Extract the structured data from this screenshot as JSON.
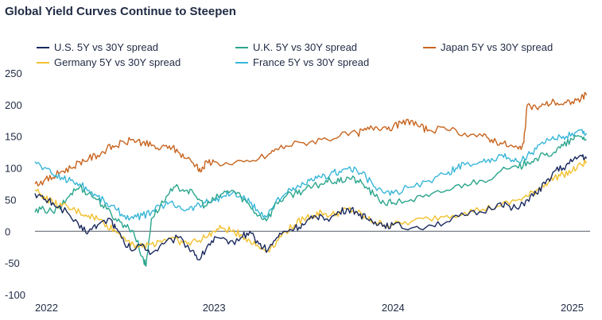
{
  "title": "Global Yield Curves Continue to Steepen",
  "chart_data": {
    "type": "line",
    "title": "Global Yield Curves Continue to Steepen",
    "xlabel": "",
    "ylabel": "",
    "x_range": [
      2022.0,
      2025.1
    ],
    "ylim": [
      -100,
      250
    ],
    "y_ticks": [
      250,
      200,
      150,
      100,
      50,
      0,
      -50,
      -100
    ],
    "y_tick_labels": [
      "250",
      "200",
      "150",
      "100",
      "50",
      "0",
      "-50",
      "-100"
    ],
    "x_ticks": [
      2022,
      2023,
      2024,
      2025
    ],
    "x_tick_labels": [
      "2022",
      "2023",
      "2024",
      "2025"
    ],
    "zero_line": true,
    "grid": false,
    "legend_placement": "top",
    "series": [
      {
        "name": "U.S. 5Y vs 30Y spread",
        "color": "#1b2a5e",
        "points": [
          [
            2022.0,
            60
          ],
          [
            2022.05,
            50
          ],
          [
            2022.1,
            45
          ],
          [
            2022.18,
            30
          ],
          [
            2022.25,
            5
          ],
          [
            2022.3,
            0
          ],
          [
            2022.35,
            10
          ],
          [
            2022.42,
            20
          ],
          [
            2022.45,
            5
          ],
          [
            2022.5,
            -20
          ],
          [
            2022.55,
            -30
          ],
          [
            2022.6,
            -20
          ],
          [
            2022.65,
            -35
          ],
          [
            2022.72,
            -20
          ],
          [
            2022.8,
            -10
          ],
          [
            2022.88,
            -30
          ],
          [
            2022.92,
            -45
          ],
          [
            2022.97,
            -20
          ],
          [
            2023.02,
            -10
          ],
          [
            2023.08,
            -20
          ],
          [
            2023.15,
            -10
          ],
          [
            2023.2,
            0
          ],
          [
            2023.25,
            -20
          ],
          [
            2023.3,
            -30
          ],
          [
            2023.35,
            -10
          ],
          [
            2023.4,
            0
          ],
          [
            2023.45,
            5
          ],
          [
            2023.5,
            10
          ],
          [
            2023.55,
            20
          ],
          [
            2023.6,
            25
          ],
          [
            2023.65,
            20
          ],
          [
            2023.7,
            30
          ],
          [
            2023.75,
            35
          ],
          [
            2023.8,
            30
          ],
          [
            2023.85,
            20
          ],
          [
            2023.9,
            15
          ],
          [
            2023.95,
            10
          ],
          [
            2024.0,
            10
          ],
          [
            2024.1,
            5
          ],
          [
            2024.2,
            10
          ],
          [
            2024.3,
            15
          ],
          [
            2024.4,
            25
          ],
          [
            2024.5,
            30
          ],
          [
            2024.6,
            45
          ],
          [
            2024.65,
            40
          ],
          [
            2024.7,
            35
          ],
          [
            2024.75,
            50
          ],
          [
            2024.8,
            60
          ],
          [
            2024.85,
            75
          ],
          [
            2024.9,
            95
          ],
          [
            2024.95,
            100
          ],
          [
            2025.0,
            110
          ],
          [
            2025.05,
            120
          ],
          [
            2025.08,
            115
          ]
        ]
      },
      {
        "name": "U.K. 5Y vs 30Y spread",
        "color": "#2aa58c",
        "points": [
          [
            2022.0,
            30
          ],
          [
            2022.05,
            35
          ],
          [
            2022.1,
            30
          ],
          [
            2022.15,
            40
          ],
          [
            2022.2,
            60
          ],
          [
            2022.25,
            70
          ],
          [
            2022.3,
            60
          ],
          [
            2022.35,
            50
          ],
          [
            2022.4,
            35
          ],
          [
            2022.45,
            20
          ],
          [
            2022.5,
            10
          ],
          [
            2022.55,
            0
          ],
          [
            2022.6,
            -40
          ],
          [
            2022.62,
            -55
          ],
          [
            2022.65,
            20
          ],
          [
            2022.7,
            40
          ],
          [
            2022.75,
            60
          ],
          [
            2022.8,
            70
          ],
          [
            2022.85,
            65
          ],
          [
            2022.9,
            55
          ],
          [
            2022.95,
            40
          ],
          [
            2023.0,
            50
          ],
          [
            2023.05,
            60
          ],
          [
            2023.1,
            65
          ],
          [
            2023.15,
            55
          ],
          [
            2023.2,
            40
          ],
          [
            2023.25,
            25
          ],
          [
            2023.3,
            20
          ],
          [
            2023.35,
            45
          ],
          [
            2023.4,
            55
          ],
          [
            2023.45,
            60
          ],
          [
            2023.5,
            65
          ],
          [
            2023.55,
            70
          ],
          [
            2023.6,
            75
          ],
          [
            2023.65,
            80
          ],
          [
            2023.7,
            78
          ],
          [
            2023.75,
            85
          ],
          [
            2023.8,
            80
          ],
          [
            2023.85,
            70
          ],
          [
            2023.9,
            55
          ],
          [
            2023.95,
            45
          ],
          [
            2024.0,
            45
          ],
          [
            2024.1,
            50
          ],
          [
            2024.2,
            55
          ],
          [
            2024.3,
            65
          ],
          [
            2024.4,
            75
          ],
          [
            2024.5,
            80
          ],
          [
            2024.6,
            95
          ],
          [
            2024.7,
            100
          ],
          [
            2024.75,
            110
          ],
          [
            2024.8,
            115
          ],
          [
            2024.85,
            120
          ],
          [
            2024.9,
            125
          ],
          [
            2024.95,
            135
          ],
          [
            2025.0,
            145
          ],
          [
            2025.05,
            150
          ],
          [
            2025.08,
            145
          ]
        ]
      },
      {
        "name": "Japan 5Y vs 30Y spread",
        "color": "#c8641e",
        "points": [
          [
            2022.0,
            75
          ],
          [
            2022.05,
            80
          ],
          [
            2022.1,
            85
          ],
          [
            2022.15,
            95
          ],
          [
            2022.2,
            100
          ],
          [
            2022.25,
            110
          ],
          [
            2022.3,
            115
          ],
          [
            2022.35,
            120
          ],
          [
            2022.4,
            130
          ],
          [
            2022.45,
            135
          ],
          [
            2022.5,
            140
          ],
          [
            2022.55,
            145
          ],
          [
            2022.6,
            140
          ],
          [
            2022.65,
            135
          ],
          [
            2022.7,
            130
          ],
          [
            2022.75,
            135
          ],
          [
            2022.8,
            125
          ],
          [
            2022.85,
            115
          ],
          [
            2022.9,
            105
          ],
          [
            2022.93,
            95
          ],
          [
            2022.96,
            110
          ],
          [
            2023.0,
            110
          ],
          [
            2023.1,
            105
          ],
          [
            2023.2,
            110
          ],
          [
            2023.3,
            120
          ],
          [
            2023.35,
            130
          ],
          [
            2023.4,
            135
          ],
          [
            2023.5,
            140
          ],
          [
            2023.6,
            145
          ],
          [
            2023.7,
            150
          ],
          [
            2023.8,
            155
          ],
          [
            2023.85,
            160
          ],
          [
            2023.9,
            165
          ],
          [
            2023.95,
            165
          ],
          [
            2024.0,
            165
          ],
          [
            2024.05,
            170
          ],
          [
            2024.1,
            175
          ],
          [
            2024.15,
            165
          ],
          [
            2024.2,
            160
          ],
          [
            2024.3,
            160
          ],
          [
            2024.4,
            155
          ],
          [
            2024.5,
            150
          ],
          [
            2024.55,
            145
          ],
          [
            2024.6,
            140
          ],
          [
            2024.65,
            135
          ],
          [
            2024.7,
            130
          ],
          [
            2024.73,
            140
          ],
          [
            2024.75,
            200
          ],
          [
            2024.8,
            195
          ],
          [
            2024.85,
            200
          ],
          [
            2024.9,
            205
          ],
          [
            2024.95,
            200
          ],
          [
            2025.0,
            205
          ],
          [
            2025.05,
            210
          ],
          [
            2025.08,
            215
          ]
        ]
      },
      {
        "name": "Germany 5Y vs 30Y spread",
        "color": "#f2c12e",
        "points": [
          [
            2022.0,
            65
          ],
          [
            2022.05,
            55
          ],
          [
            2022.1,
            45
          ],
          [
            2022.15,
            40
          ],
          [
            2022.2,
            35
          ],
          [
            2022.25,
            30
          ],
          [
            2022.3,
            25
          ],
          [
            2022.35,
            20
          ],
          [
            2022.4,
            10
          ],
          [
            2022.45,
            0
          ],
          [
            2022.5,
            -10
          ],
          [
            2022.55,
            -20
          ],
          [
            2022.6,
            -25
          ],
          [
            2022.65,
            -20
          ],
          [
            2022.7,
            -15
          ],
          [
            2022.75,
            -10
          ],
          [
            2022.8,
            -15
          ],
          [
            2022.85,
            -20
          ],
          [
            2022.9,
            -15
          ],
          [
            2022.95,
            -10
          ],
          [
            2023.0,
            0
          ],
          [
            2023.05,
            5
          ],
          [
            2023.1,
            0
          ],
          [
            2023.15,
            -5
          ],
          [
            2023.2,
            -15
          ],
          [
            2023.25,
            -25
          ],
          [
            2023.3,
            -30
          ],
          [
            2023.35,
            -15
          ],
          [
            2023.4,
            0
          ],
          [
            2023.45,
            10
          ],
          [
            2023.5,
            20
          ],
          [
            2023.55,
            25
          ],
          [
            2023.6,
            30
          ],
          [
            2023.65,
            25
          ],
          [
            2023.7,
            30
          ],
          [
            2023.75,
            35
          ],
          [
            2023.8,
            30
          ],
          [
            2023.85,
            20
          ],
          [
            2023.9,
            15
          ],
          [
            2023.95,
            10
          ],
          [
            2024.0,
            10
          ],
          [
            2024.1,
            15
          ],
          [
            2024.2,
            20
          ],
          [
            2024.3,
            25
          ],
          [
            2024.4,
            30
          ],
          [
            2024.5,
            35
          ],
          [
            2024.6,
            40
          ],
          [
            2024.7,
            50
          ],
          [
            2024.75,
            55
          ],
          [
            2024.8,
            65
          ],
          [
            2024.85,
            75
          ],
          [
            2024.9,
            85
          ],
          [
            2024.95,
            90
          ],
          [
            2025.0,
            95
          ],
          [
            2025.05,
            105
          ],
          [
            2025.08,
            110
          ]
        ]
      },
      {
        "name": "France 5Y vs 30Y spread",
        "color": "#38b6d8",
        "points": [
          [
            2022.0,
            110
          ],
          [
            2022.05,
            100
          ],
          [
            2022.1,
            90
          ],
          [
            2022.15,
            85
          ],
          [
            2022.2,
            80
          ],
          [
            2022.25,
            75
          ],
          [
            2022.3,
            65
          ],
          [
            2022.35,
            55
          ],
          [
            2022.4,
            45
          ],
          [
            2022.45,
            35
          ],
          [
            2022.5,
            25
          ],
          [
            2022.55,
            20
          ],
          [
            2022.6,
            25
          ],
          [
            2022.65,
            30
          ],
          [
            2022.7,
            40
          ],
          [
            2022.75,
            45
          ],
          [
            2022.8,
            40
          ],
          [
            2022.85,
            35
          ],
          [
            2022.9,
            40
          ],
          [
            2022.95,
            45
          ],
          [
            2023.0,
            50
          ],
          [
            2023.05,
            55
          ],
          [
            2023.1,
            60
          ],
          [
            2023.15,
            55
          ],
          [
            2023.2,
            45
          ],
          [
            2023.25,
            30
          ],
          [
            2023.3,
            25
          ],
          [
            2023.35,
            50
          ],
          [
            2023.4,
            60
          ],
          [
            2023.45,
            65
          ],
          [
            2023.5,
            75
          ],
          [
            2023.55,
            80
          ],
          [
            2023.6,
            85
          ],
          [
            2023.65,
            90
          ],
          [
            2023.7,
            95
          ],
          [
            2023.75,
            100
          ],
          [
            2023.8,
            95
          ],
          [
            2023.85,
            85
          ],
          [
            2023.9,
            70
          ],
          [
            2023.95,
            60
          ],
          [
            2024.0,
            60
          ],
          [
            2024.1,
            70
          ],
          [
            2024.2,
            80
          ],
          [
            2024.3,
            90
          ],
          [
            2024.35,
            100
          ],
          [
            2024.4,
            105
          ],
          [
            2024.5,
            110
          ],
          [
            2024.55,
            115
          ],
          [
            2024.6,
            120
          ],
          [
            2024.65,
            115
          ],
          [
            2024.7,
            110
          ],
          [
            2024.75,
            120
          ],
          [
            2024.8,
            130
          ],
          [
            2024.85,
            140
          ],
          [
            2024.9,
            145
          ],
          [
            2024.95,
            150
          ],
          [
            2025.0,
            155
          ],
          [
            2025.05,
            160
          ],
          [
            2025.08,
            155
          ]
        ]
      }
    ]
  }
}
